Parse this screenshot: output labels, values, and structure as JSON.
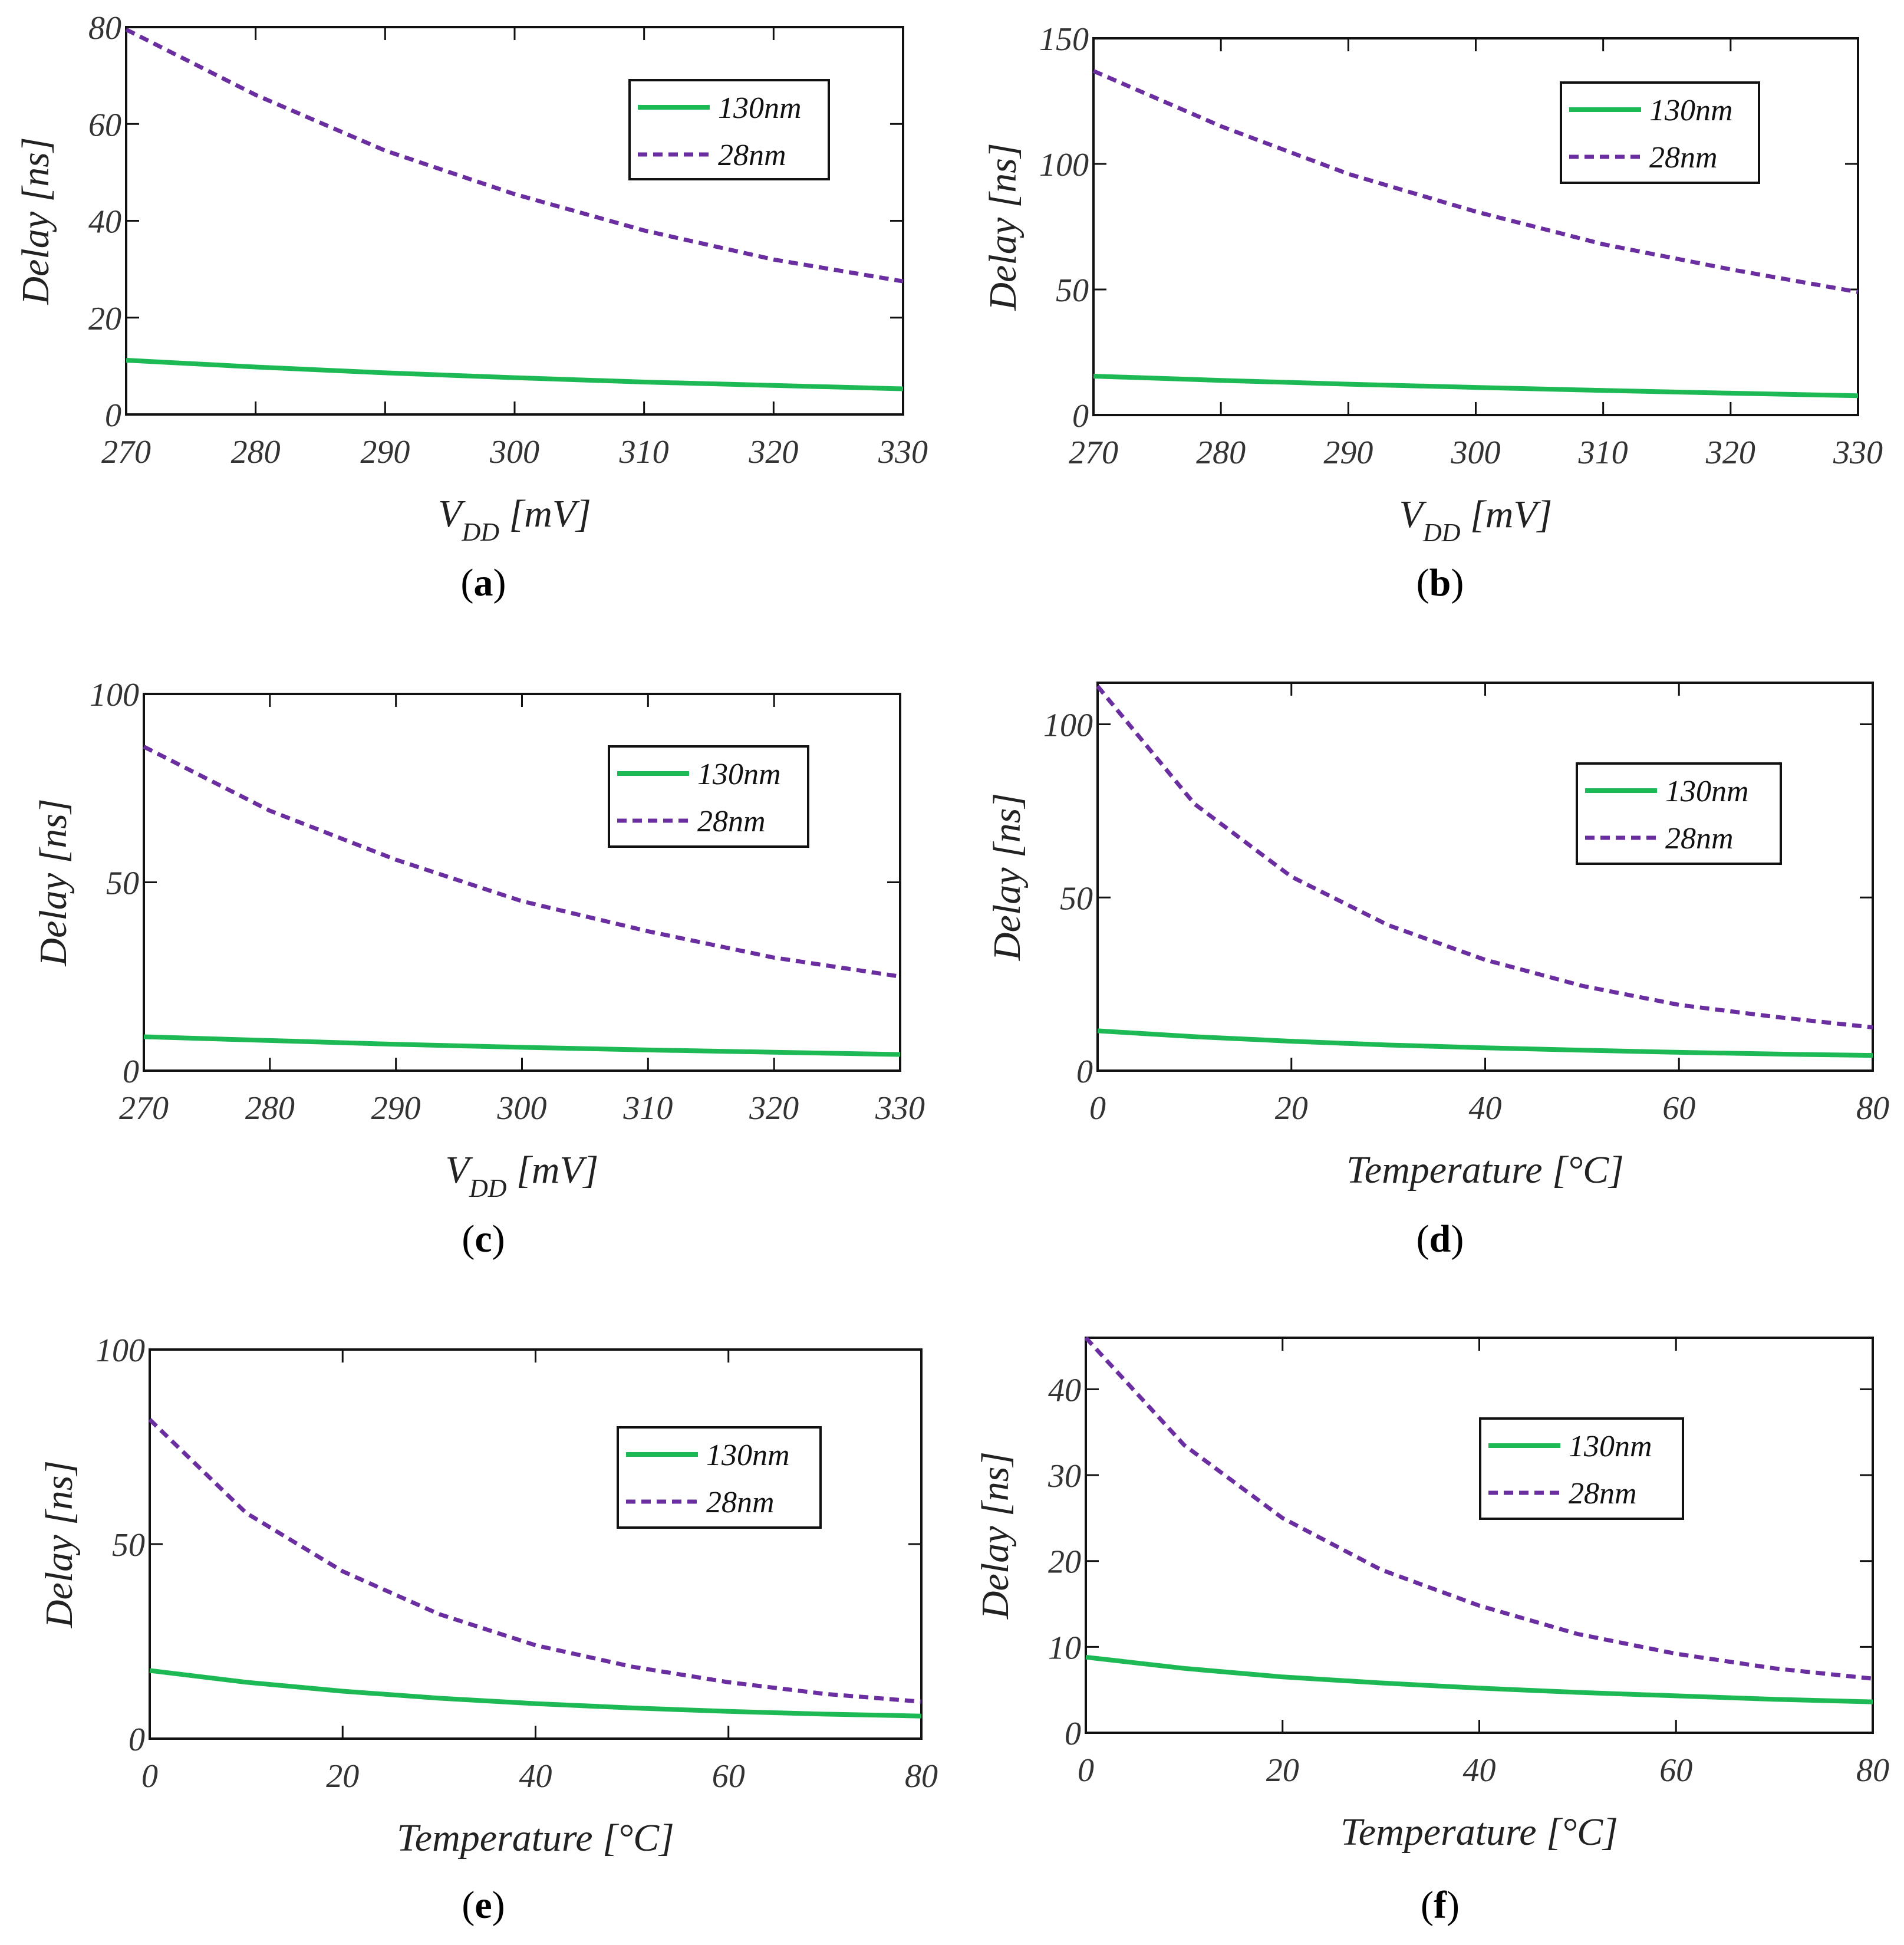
{
  "figure": {
    "colors": {
      "s130": "#1db954",
      "s28": "#6a2ea0",
      "axis": "#111111",
      "text": "#222222"
    }
  },
  "chart_data": [
    {
      "panel": "a",
      "caption_open": "(",
      "caption_letter": "a",
      "caption_close": ")",
      "type": "line",
      "xlabel_main": "V",
      "xlabel_sub": "DD",
      "xlabel_unit": " [mV]",
      "ylabel": "Delay [ns]",
      "xlim": [
        270,
        330
      ],
      "ylim": [
        0,
        80
      ],
      "xticks": [
        270,
        280,
        290,
        300,
        310,
        320,
        330
      ],
      "yticks": [
        0,
        20,
        40,
        60,
        80
      ],
      "legend_position": "top-right",
      "x": [
        270,
        280,
        290,
        300,
        310,
        320,
        330
      ],
      "series": [
        {
          "name": "130nm",
          "style": "solid",
          "values": [
            11.2,
            9.8,
            8.6,
            7.6,
            6.7,
            6.0,
            5.3
          ]
        },
        {
          "name": "28nm",
          "style": "dashed",
          "values": [
            79.5,
            66,
            54.5,
            45.5,
            38,
            32,
            27.5
          ]
        }
      ]
    },
    {
      "panel": "b",
      "caption_open": "(",
      "caption_letter": "b",
      "caption_close": ")",
      "type": "line",
      "xlabel_main": "V",
      "xlabel_sub": "DD",
      "xlabel_unit": " [mV]",
      "ylabel": "Delay [ns]",
      "xlim": [
        270,
        330
      ],
      "ylim": [
        0,
        150
      ],
      "xticks": [
        270,
        280,
        290,
        300,
        310,
        320,
        330
      ],
      "yticks": [
        0,
        50,
        100,
        150
      ],
      "legend_position": "top-right",
      "x": [
        270,
        280,
        290,
        300,
        310,
        320,
        330
      ],
      "series": [
        {
          "name": "130nm",
          "style": "solid",
          "values": [
            15.5,
            13.8,
            12.3,
            11,
            9.8,
            8.7,
            7.7
          ]
        },
        {
          "name": "28nm",
          "style": "dashed",
          "values": [
            137,
            115,
            96,
            81,
            68,
            58,
            49
          ]
        }
      ]
    },
    {
      "panel": "c",
      "caption_open": "(",
      "caption_letter": "c",
      "caption_close": ")",
      "type": "line",
      "xlabel_main": "V",
      "xlabel_sub": "DD",
      "xlabel_unit": " [mV]",
      "ylabel": "Delay [ns]",
      "xlim": [
        270,
        330
      ],
      "ylim": [
        0,
        100
      ],
      "xticks": [
        270,
        280,
        290,
        300,
        310,
        320,
        330
      ],
      "yticks": [
        0,
        50,
        100
      ],
      "legend_position": "top-right",
      "x": [
        270,
        280,
        290,
        300,
        310,
        320,
        330
      ],
      "series": [
        {
          "name": "130nm",
          "style": "solid",
          "values": [
            9,
            8,
            7,
            6.2,
            5.5,
            4.9,
            4.3
          ]
        },
        {
          "name": "28nm",
          "style": "dashed",
          "values": [
            86,
            69,
            56,
            45,
            37,
            30,
            25
          ]
        }
      ]
    },
    {
      "panel": "d",
      "caption_open": "(",
      "caption_letter": "d",
      "caption_close": ")",
      "type": "line",
      "xlabel_main": "Temperature [°C]",
      "xlabel_sub": "",
      "xlabel_unit": "",
      "ylabel": "Delay [ns]",
      "xlim": [
        0,
        80
      ],
      "ylim": [
        0,
        112
      ],
      "xticks": [
        0,
        20,
        40,
        60,
        80
      ],
      "yticks": [
        0,
        50,
        100
      ],
      "legend_position": "top-right",
      "x": [
        0,
        10,
        20,
        30,
        40,
        50,
        60,
        70,
        80
      ],
      "series": [
        {
          "name": "130nm",
          "style": "solid",
          "values": [
            11.5,
            9.8,
            8.5,
            7.4,
            6.6,
            5.9,
            5.3,
            4.8,
            4.4
          ]
        },
        {
          "name": "28nm",
          "style": "dashed",
          "values": [
            111,
            77,
            56,
            42,
            32,
            24.5,
            19,
            15.5,
            12.5
          ]
        }
      ]
    },
    {
      "panel": "e",
      "caption_open": "(",
      "caption_letter": "e",
      "caption_close": ")",
      "type": "line",
      "xlabel_main": "Temperature [°C]",
      "xlabel_sub": "",
      "xlabel_unit": "",
      "ylabel": "Delay [ns]",
      "xlim": [
        0,
        80
      ],
      "ylim": [
        0,
        100
      ],
      "xticks": [
        0,
        20,
        40,
        60,
        80
      ],
      "yticks": [
        0,
        50,
        100
      ],
      "legend_position": "top-right",
      "x": [
        0,
        10,
        20,
        30,
        40,
        50,
        60,
        70,
        80
      ],
      "series": [
        {
          "name": "130nm",
          "style": "solid",
          "values": [
            17.5,
            14.5,
            12.2,
            10.4,
            9,
            7.9,
            7,
            6.3,
            5.8
          ]
        },
        {
          "name": "28nm",
          "style": "dashed",
          "values": [
            82,
            58,
            43,
            32,
            24,
            18.5,
            14.5,
            11.5,
            9.5
          ]
        }
      ]
    },
    {
      "panel": "f",
      "caption_open": "(",
      "caption_letter": "f",
      "caption_close": ")",
      "type": "line",
      "xlabel_main": "Temperature [°C]",
      "xlabel_sub": "",
      "xlabel_unit": "",
      "ylabel": "Delay [ns]",
      "xlim": [
        0,
        80
      ],
      "ylim": [
        0,
        46
      ],
      "xticks": [
        0,
        20,
        40,
        60,
        80
      ],
      "yticks": [
        0,
        10,
        20,
        30,
        40
      ],
      "legend_position": "top-right",
      "x": [
        0,
        10,
        20,
        30,
        40,
        50,
        60,
        70,
        80
      ],
      "series": [
        {
          "name": "130nm",
          "style": "solid",
          "values": [
            8.8,
            7.5,
            6.5,
            5.8,
            5.2,
            4.7,
            4.3,
            3.9,
            3.6
          ]
        },
        {
          "name": "28nm",
          "style": "dashed",
          "values": [
            46,
            33.5,
            25,
            19,
            14.8,
            11.5,
            9.2,
            7.5,
            6.3
          ]
        }
      ]
    }
  ]
}
